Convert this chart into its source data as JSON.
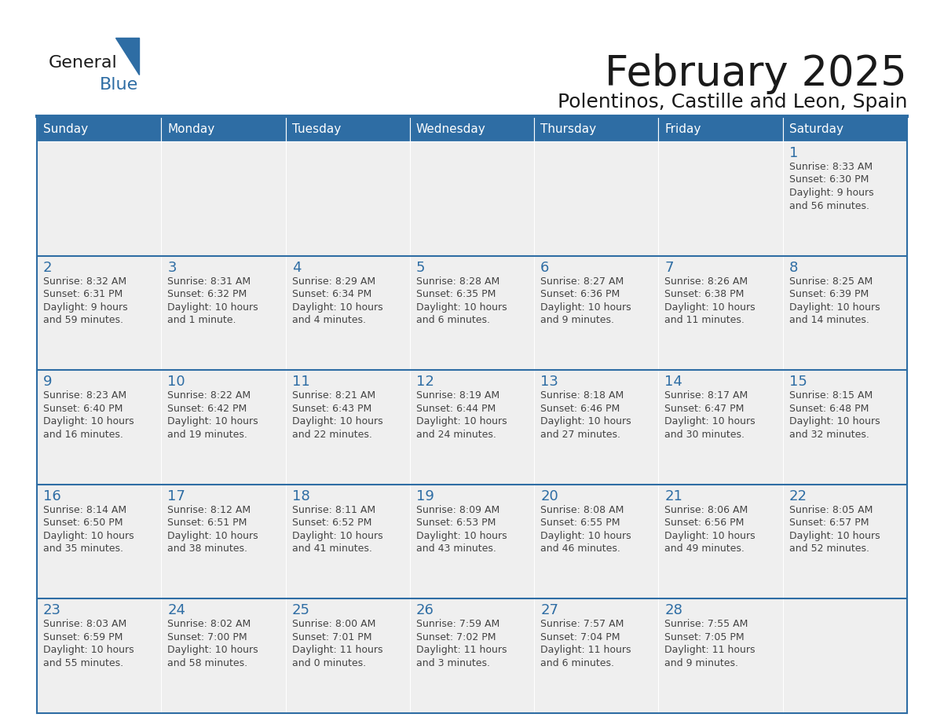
{
  "title": "February 2025",
  "subtitle": "Polentinos, Castille and Leon, Spain",
  "header_color": "#2E6DA4",
  "header_text_color": "#FFFFFF",
  "cell_bg_color": "#EFEFEF",
  "cell_bg_white": "#FFFFFF",
  "grid_line_color": "#2E6DA4",
  "day_number_color": "#2E6DA4",
  "text_color": "#444444",
  "days_of_week": [
    "Sunday",
    "Monday",
    "Tuesday",
    "Wednesday",
    "Thursday",
    "Friday",
    "Saturday"
  ],
  "weeks": [
    [
      {
        "day": "",
        "info": ""
      },
      {
        "day": "",
        "info": ""
      },
      {
        "day": "",
        "info": ""
      },
      {
        "day": "",
        "info": ""
      },
      {
        "day": "",
        "info": ""
      },
      {
        "day": "",
        "info": ""
      },
      {
        "day": "1",
        "info": "Sunrise: 8:33 AM\nSunset: 6:30 PM\nDaylight: 9 hours\nand 56 minutes."
      }
    ],
    [
      {
        "day": "2",
        "info": "Sunrise: 8:32 AM\nSunset: 6:31 PM\nDaylight: 9 hours\nand 59 minutes."
      },
      {
        "day": "3",
        "info": "Sunrise: 8:31 AM\nSunset: 6:32 PM\nDaylight: 10 hours\nand 1 minute."
      },
      {
        "day": "4",
        "info": "Sunrise: 8:29 AM\nSunset: 6:34 PM\nDaylight: 10 hours\nand 4 minutes."
      },
      {
        "day": "5",
        "info": "Sunrise: 8:28 AM\nSunset: 6:35 PM\nDaylight: 10 hours\nand 6 minutes."
      },
      {
        "day": "6",
        "info": "Sunrise: 8:27 AM\nSunset: 6:36 PM\nDaylight: 10 hours\nand 9 minutes."
      },
      {
        "day": "7",
        "info": "Sunrise: 8:26 AM\nSunset: 6:38 PM\nDaylight: 10 hours\nand 11 minutes."
      },
      {
        "day": "8",
        "info": "Sunrise: 8:25 AM\nSunset: 6:39 PM\nDaylight: 10 hours\nand 14 minutes."
      }
    ],
    [
      {
        "day": "9",
        "info": "Sunrise: 8:23 AM\nSunset: 6:40 PM\nDaylight: 10 hours\nand 16 minutes."
      },
      {
        "day": "10",
        "info": "Sunrise: 8:22 AM\nSunset: 6:42 PM\nDaylight: 10 hours\nand 19 minutes."
      },
      {
        "day": "11",
        "info": "Sunrise: 8:21 AM\nSunset: 6:43 PM\nDaylight: 10 hours\nand 22 minutes."
      },
      {
        "day": "12",
        "info": "Sunrise: 8:19 AM\nSunset: 6:44 PM\nDaylight: 10 hours\nand 24 minutes."
      },
      {
        "day": "13",
        "info": "Sunrise: 8:18 AM\nSunset: 6:46 PM\nDaylight: 10 hours\nand 27 minutes."
      },
      {
        "day": "14",
        "info": "Sunrise: 8:17 AM\nSunset: 6:47 PM\nDaylight: 10 hours\nand 30 minutes."
      },
      {
        "day": "15",
        "info": "Sunrise: 8:15 AM\nSunset: 6:48 PM\nDaylight: 10 hours\nand 32 minutes."
      }
    ],
    [
      {
        "day": "16",
        "info": "Sunrise: 8:14 AM\nSunset: 6:50 PM\nDaylight: 10 hours\nand 35 minutes."
      },
      {
        "day": "17",
        "info": "Sunrise: 8:12 AM\nSunset: 6:51 PM\nDaylight: 10 hours\nand 38 minutes."
      },
      {
        "day": "18",
        "info": "Sunrise: 8:11 AM\nSunset: 6:52 PM\nDaylight: 10 hours\nand 41 minutes."
      },
      {
        "day": "19",
        "info": "Sunrise: 8:09 AM\nSunset: 6:53 PM\nDaylight: 10 hours\nand 43 minutes."
      },
      {
        "day": "20",
        "info": "Sunrise: 8:08 AM\nSunset: 6:55 PM\nDaylight: 10 hours\nand 46 minutes."
      },
      {
        "day": "21",
        "info": "Sunrise: 8:06 AM\nSunset: 6:56 PM\nDaylight: 10 hours\nand 49 minutes."
      },
      {
        "day": "22",
        "info": "Sunrise: 8:05 AM\nSunset: 6:57 PM\nDaylight: 10 hours\nand 52 minutes."
      }
    ],
    [
      {
        "day": "23",
        "info": "Sunrise: 8:03 AM\nSunset: 6:59 PM\nDaylight: 10 hours\nand 55 minutes."
      },
      {
        "day": "24",
        "info": "Sunrise: 8:02 AM\nSunset: 7:00 PM\nDaylight: 10 hours\nand 58 minutes."
      },
      {
        "day": "25",
        "info": "Sunrise: 8:00 AM\nSunset: 7:01 PM\nDaylight: 11 hours\nand 0 minutes."
      },
      {
        "day": "26",
        "info": "Sunrise: 7:59 AM\nSunset: 7:02 PM\nDaylight: 11 hours\nand 3 minutes."
      },
      {
        "day": "27",
        "info": "Sunrise: 7:57 AM\nSunset: 7:04 PM\nDaylight: 11 hours\nand 6 minutes."
      },
      {
        "day": "28",
        "info": "Sunrise: 7:55 AM\nSunset: 7:05 PM\nDaylight: 11 hours\nand 9 minutes."
      },
      {
        "day": "",
        "info": ""
      }
    ]
  ],
  "logo_general_color": "#1a1a1a",
  "logo_blue_color": "#2E6DA4",
  "title_fontsize": 38,
  "subtitle_fontsize": 18,
  "header_fontsize": 11,
  "day_num_fontsize": 13,
  "info_fontsize": 9
}
